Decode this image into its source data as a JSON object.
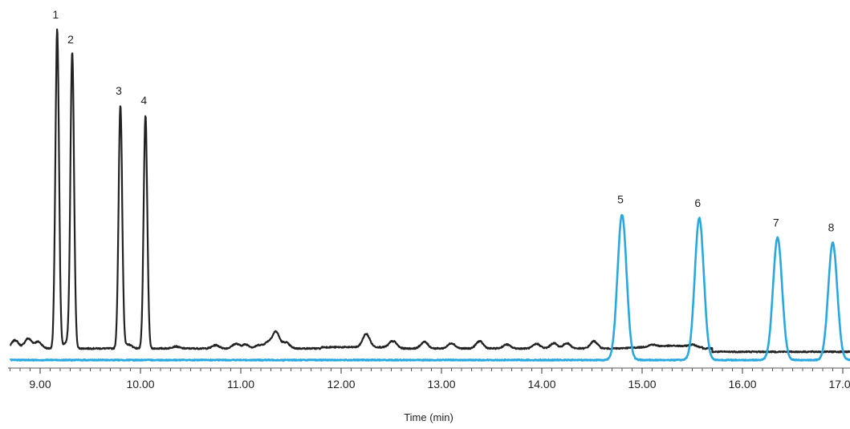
{
  "chart_data": {
    "type": "line",
    "title": "",
    "xlabel": "Time (min)",
    "ylabel": "",
    "xlim": [
      8.7,
      17.3
    ],
    "ylim": [
      0,
      1.0
    ],
    "xticks": [
      9.0,
      10.0,
      11.0,
      12.0,
      13.0,
      14.0,
      15.0,
      16.0,
      17.0
    ],
    "xtick_labels": [
      "9.00",
      "10.00",
      "11.00",
      "12.00",
      "13.00",
      "14.00",
      "15.00",
      "16.00",
      "17.00"
    ],
    "grid": false,
    "legend": "none",
    "series": [
      {
        "color": "#222222",
        "baseline": 0.035,
        "peaks": [
          {
            "label": "1",
            "x": 9.17,
            "y": 1.0
          },
          {
            "label": "2",
            "x": 9.32,
            "y": 0.925
          },
          {
            "label": "3",
            "x": 9.8,
            "y": 0.77
          },
          {
            "label": "4",
            "x": 10.05,
            "y": 0.74
          }
        ]
      },
      {
        "color": "#29a8df",
        "baseline": 0.0,
        "peaks": [
          {
            "label": "5",
            "x": 14.8,
            "y": 0.44
          },
          {
            "label": "6",
            "x": 15.57,
            "y": 0.43
          },
          {
            "label": "7",
            "x": 16.35,
            "y": 0.37
          },
          {
            "label": "8",
            "x": 16.9,
            "y": 0.355
          }
        ]
      }
    ]
  }
}
